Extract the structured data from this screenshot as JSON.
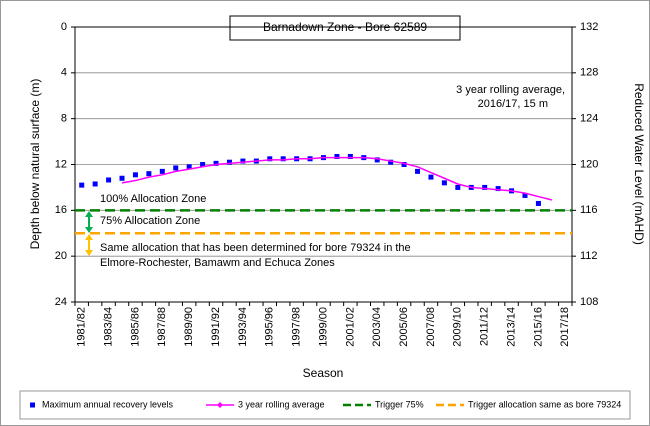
{
  "chart_data": {
    "type": "line",
    "title": "Barnadown  Zone  - Bore 62589",
    "y_label": "Depth below natural surface (m)",
    "y2_label": "Reduced Water Level (mAHD)",
    "x_label": "Season",
    "categories": [
      "1981/82",
      null,
      "1983/84",
      null,
      "1985/86",
      null,
      "1987/88",
      null,
      "1989/90",
      null,
      "1991/92",
      null,
      "1993/94",
      null,
      "1995/96",
      null,
      "1997/98",
      null,
      "1999/00",
      null,
      "2001/02",
      null,
      "2003/04",
      null,
      "2005/06",
      null,
      "2007/08",
      null,
      "2009/10",
      null,
      "2011/12",
      null,
      "2013/14",
      null,
      "2015/16",
      null,
      "2017/18"
    ],
    "ylim": [
      0,
      24
    ],
    "yticks": [
      0,
      4,
      8,
      12,
      16,
      20,
      24
    ],
    "y2lim": [
      132,
      108
    ],
    "y2ticks": [
      132,
      128,
      124,
      120,
      116,
      112,
      108
    ],
    "grid": true,
    "series": [
      {
        "name": "Maximum annual recovery levels",
        "color": "#0000ff",
        "kind": "markers",
        "values": [
          13.8,
          13.7,
          13.35,
          13.2,
          12.9,
          12.8,
          12.6,
          12.3,
          12.2,
          12.0,
          11.9,
          11.8,
          11.7,
          11.7,
          11.5,
          11.5,
          11.5,
          11.5,
          11.4,
          11.3,
          11.3,
          11.4,
          11.6,
          11.8,
          12.0,
          12.6,
          13.1,
          13.6,
          14.0,
          14.0,
          14.0,
          14.1,
          14.3,
          14.7,
          15.4,
          null,
          null
        ]
      },
      {
        "name": "3 year rolling average",
        "color": "#ff00ff",
        "kind": "line",
        "values": [
          null,
          null,
          null,
          13.6,
          13.4,
          13.1,
          12.9,
          12.6,
          12.4,
          12.2,
          12.0,
          11.9,
          11.8,
          11.7,
          11.6,
          11.6,
          11.5,
          11.5,
          11.4,
          11.4,
          11.4,
          11.4,
          11.5,
          11.7,
          11.9,
          12.2,
          12.7,
          13.2,
          13.7,
          14.0,
          14.1,
          14.2,
          14.3,
          14.5,
          14.8,
          15.1,
          null
        ]
      },
      {
        "name": "Trigger 75%",
        "color": "#008000",
        "kind": "hline",
        "value": 16
      },
      {
        "name": "Trigger allocation same as bore 79324",
        "color": "#ffa500",
        "kind": "hline",
        "value": 18
      }
    ],
    "annotations": [
      "3 year rolling average,",
      "2016/17, 15 m",
      "100% Allocation Zone",
      "75% Allocation Zone",
      "Same allocation that has been determined for bore 79324 in the",
      "Elmore-Rochester, Bamawm and Echuca Zones"
    ]
  }
}
